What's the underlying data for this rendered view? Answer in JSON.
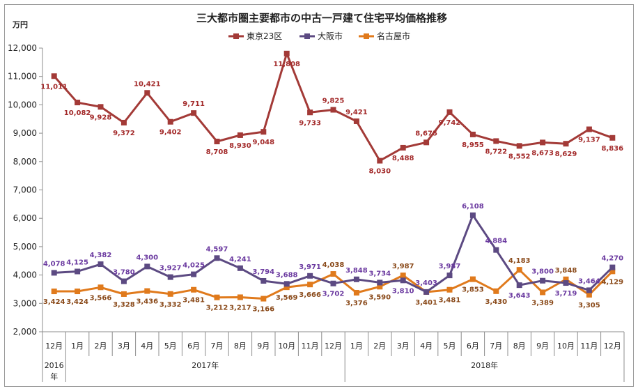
{
  "chart_data": {
    "type": "line",
    "title": "三大都市圏主要都市の中古一戸建て住宅平均価格推移",
    "ylabel": "万円",
    "ylim": [
      2000,
      12000
    ],
    "yticks": [
      "2,000",
      "3,000",
      "4,000",
      "5,000",
      "6,000",
      "7,000",
      "8,000",
      "9,000",
      "10,000",
      "11,000",
      "12,000"
    ],
    "categories": [
      "12月",
      "1月",
      "2月",
      "3月",
      "4月",
      "5月",
      "6月",
      "7月",
      "8月",
      "9月",
      "10月",
      "11月",
      "12月",
      "1月",
      "2月",
      "3月",
      "4月",
      "5月",
      "6月",
      "7月",
      "8月",
      "9月",
      "10月",
      "11月",
      "12月"
    ],
    "year_groups": [
      {
        "label": "2016",
        "label2": "年",
        "start": 0,
        "end": 0
      },
      {
        "label": "2017年",
        "label2": "",
        "start": 1,
        "end": 12
      },
      {
        "label": "2018年",
        "label2": "",
        "start": 13,
        "end": 24
      }
    ],
    "legend_position": "top-center",
    "series": [
      {
        "name": "東京23区",
        "color": "#a33a37",
        "label_color": "#a32a2a",
        "values": [
          11011,
          10082,
          9928,
          9372,
          10421,
          9402,
          9711,
          8708,
          8930,
          9048,
          11808,
          9733,
          9825,
          9421,
          8030,
          8488,
          8675,
          9742,
          8955,
          8722,
          8552,
          8673,
          8629,
          9137,
          8836
        ],
        "labels": [
          "11,011",
          "10,082",
          "9,928",
          "9,372",
          "10,421",
          "9,402",
          "9,711",
          "8,708",
          "8,930",
          "9,048",
          "11,808",
          "9,733",
          "9,825",
          "9,421",
          "8,030",
          "8,488",
          "8,675",
          "9,742",
          "8,955",
          "8,722",
          "8,552",
          "8,673",
          "8,629",
          "9,137",
          "8,836"
        ]
      },
      {
        "name": "大阪市",
        "color": "#5c4a82",
        "label_color": "#6b3aa0",
        "values": [
          4078,
          4125,
          4382,
          3780,
          4300,
          3927,
          4025,
          4597,
          4241,
          3794,
          3688,
          3971,
          3702,
          3848,
          3734,
          3810,
          3403,
          3987,
          6108,
          4884,
          3643,
          3800,
          3719,
          3464,
          4270
        ],
        "labels": [
          "4,078",
          "4,125",
          "4,382",
          "3,780",
          "4,300",
          "3,927",
          "4,025",
          "4,597",
          "4,241",
          "3,794",
          "3,688",
          "3,971",
          "3,702",
          "3,848",
          "3,734",
          "3,810",
          "3,403",
          "3,987",
          "6,108",
          "4,884",
          "3,643",
          "3,800",
          "3,719",
          "3,464",
          "4,270"
        ]
      },
      {
        "name": "名古屋市",
        "color": "#e07a1c",
        "label_color": "#8a4a1a",
        "values": [
          3424,
          3424,
          3566,
          3328,
          3436,
          3332,
          3481,
          3212,
          3217,
          3166,
          3569,
          3666,
          4038,
          3376,
          3590,
          3987,
          3401,
          3481,
          3853,
          3430,
          4183,
          3389,
          3848,
          3305,
          4129
        ],
        "labels": [
          "3,424",
          "3,424",
          "3,566",
          "3,328",
          "3,436",
          "3,332",
          "3,481",
          "3,212",
          "3,217",
          "3,166",
          "3,569",
          "3,666",
          "4,038",
          "3,376",
          "3,590",
          "3,987",
          "3,401",
          "3,481",
          "3,853",
          "3,430",
          "4,183",
          "3,389",
          "3,848",
          "3,305",
          "4,129"
        ]
      }
    ]
  }
}
